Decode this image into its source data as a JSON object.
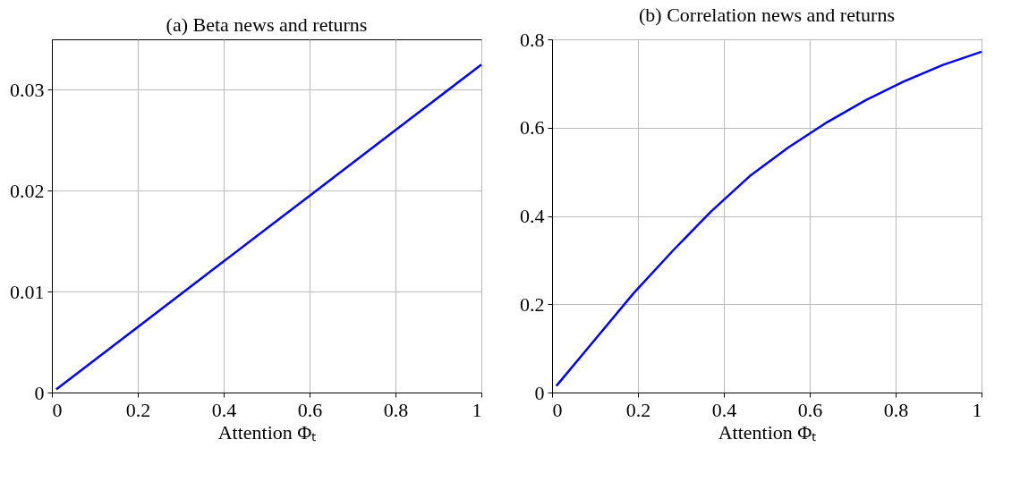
{
  "chart_data": [
    {
      "type": "line",
      "title": "(a) Beta news and returns",
      "xlabel": "Attention Φₜ",
      "x": [
        0.01,
        0.2,
        0.4,
        0.6,
        0.8,
        1.0
      ],
      "series": [
        {
          "color": "#0000ff",
          "values": [
            0.0003,
            0.0065,
            0.013,
            0.0195,
            0.026,
            0.0325
          ]
        }
      ],
      "xlim": [
        0,
        1
      ],
      "ylim": [
        0,
        0.035
      ],
      "xticks": [
        0,
        0.2,
        0.4,
        0.6,
        0.8,
        1
      ],
      "yticks": [
        0,
        0.01,
        0.02,
        0.03
      ],
      "grid": true,
      "marker": "none",
      "line_style": "solid"
    },
    {
      "type": "line",
      "title": "(b) Correlation news and returns",
      "xlabel": "Attention Φₜ",
      "x": [
        0.01,
        0.1,
        0.19,
        0.28,
        0.37,
        0.46,
        0.55,
        0.64,
        0.73,
        0.82,
        0.91,
        1.0
      ],
      "series": [
        {
          "color": "#0000ff",
          "values": [
            0.015,
            0.12,
            0.225,
            0.32,
            0.41,
            0.49,
            0.555,
            0.612,
            0.662,
            0.705,
            0.742,
            0.772
          ]
        }
      ],
      "xlim": [
        0,
        1
      ],
      "ylim": [
        0,
        0.8
      ],
      "xticks": [
        0,
        0.2,
        0.4,
        0.6,
        0.8,
        1
      ],
      "yticks": [
        0,
        0.2,
        0.4,
        0.6,
        0.8
      ],
      "grid": true,
      "marker": "none",
      "line_style": "solid"
    }
  ]
}
